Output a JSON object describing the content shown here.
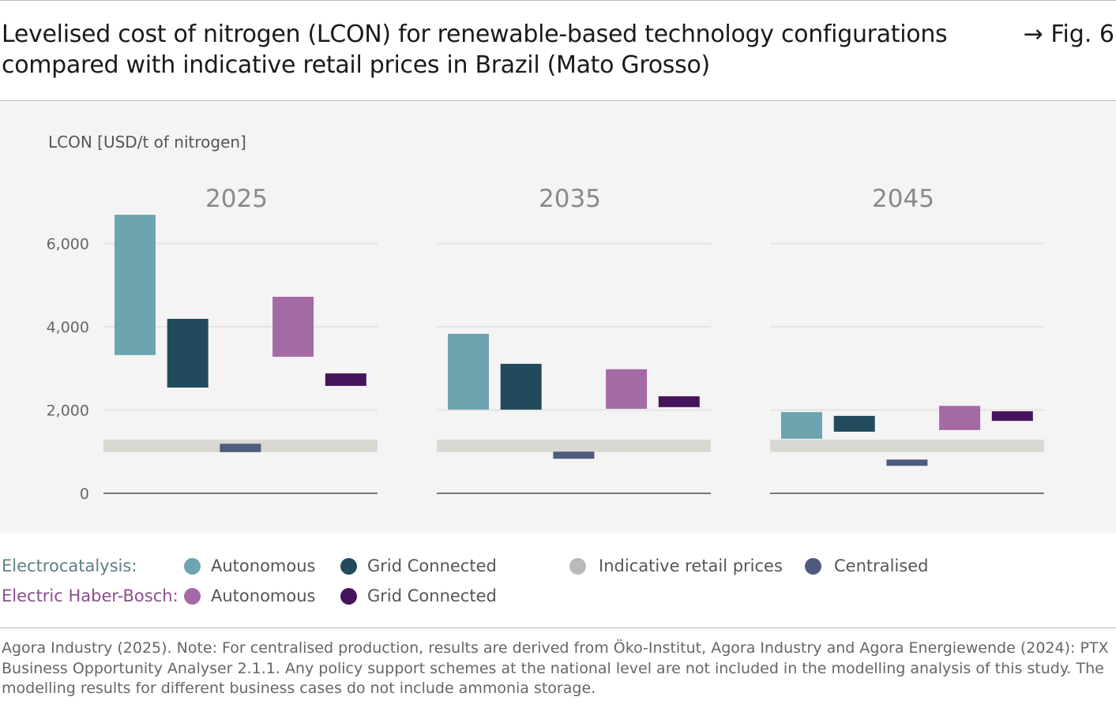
{
  "header": {
    "title": "Levelised cost of nitrogen (LCON) for renewable-based technology configurations compared with indicative retail prices in Brazil (Mato Grosso)",
    "fig_label": "→ Fig. 6"
  },
  "chart_data": {
    "type": "bar",
    "subtype": "floating range bars",
    "ylabel": "LCON [USD/t of nitrogen]",
    "ylim": [
      0,
      6000
    ],
    "yticks": [
      0,
      2000,
      4000,
      6000
    ],
    "ytick_labels": [
      "0",
      "2,000",
      "4,000",
      "6,000"
    ],
    "grid": true,
    "panels": [
      "2025",
      "2035",
      "2045"
    ],
    "series": [
      {
        "name": "Electrocatalysis: Autonomous",
        "color": "#6ca5b0",
        "ranges": [
          [
            3320,
            6690
          ],
          [
            2010,
            3830
          ],
          [
            1310,
            1950
          ]
        ]
      },
      {
        "name": "Electrocatalysis: Grid Connected",
        "color": "#214b5c",
        "ranges": [
          [
            2540,
            4190
          ],
          [
            2010,
            3110
          ],
          [
            1480,
            1860
          ]
        ]
      },
      {
        "name": "Centralised",
        "color": "#4e5a7e",
        "ranges": [
          [
            990,
            1190
          ],
          [
            830,
            1000
          ],
          [
            660,
            810
          ]
        ]
      },
      {
        "name": "Electric Haber-Bosch: Autonomous",
        "color": "#a46aa6",
        "ranges": [
          [
            3280,
            4720
          ],
          [
            2030,
            2980
          ],
          [
            1520,
            2100
          ]
        ]
      },
      {
        "name": "Electric Haber-Bosch: Grid Connected",
        "color": "#45145c",
        "ranges": [
          [
            2580,
            2880
          ],
          [
            2070,
            2330
          ],
          [
            1740,
            1970
          ]
        ]
      }
    ],
    "retail_prices": {
      "name": "Indicative retail prices",
      "color": "#d9d8d2",
      "ranges": [
        [
          990,
          1290
        ],
        [
          990,
          1290
        ],
        [
          990,
          1290
        ]
      ]
    }
  },
  "legend": {
    "ec_label": "Electrocatalysis:",
    "hb_label": "Electric Haber-Bosch:",
    "ec_color": "#5e7f86",
    "hb_color": "#8a4d8e",
    "ec_auto": "Autonomous",
    "ec_grid": "Grid Connected",
    "hb_auto": "Autonomous",
    "hb_grid": "Grid Connected",
    "retail": "Indicative retail prices",
    "centralised": "Centralised"
  },
  "footnote": "Agora Industry (2025). Note: For centralised production, results are derived from Öko-Institut, Agora Industry and Agora Energiewende (2024): PTX Business Opportunity Analyser 2.1.1. Any policy support schemes at the national level are not included in the modelling analysis of this study. The modelling results for different business cases do not include ammonia storage."
}
